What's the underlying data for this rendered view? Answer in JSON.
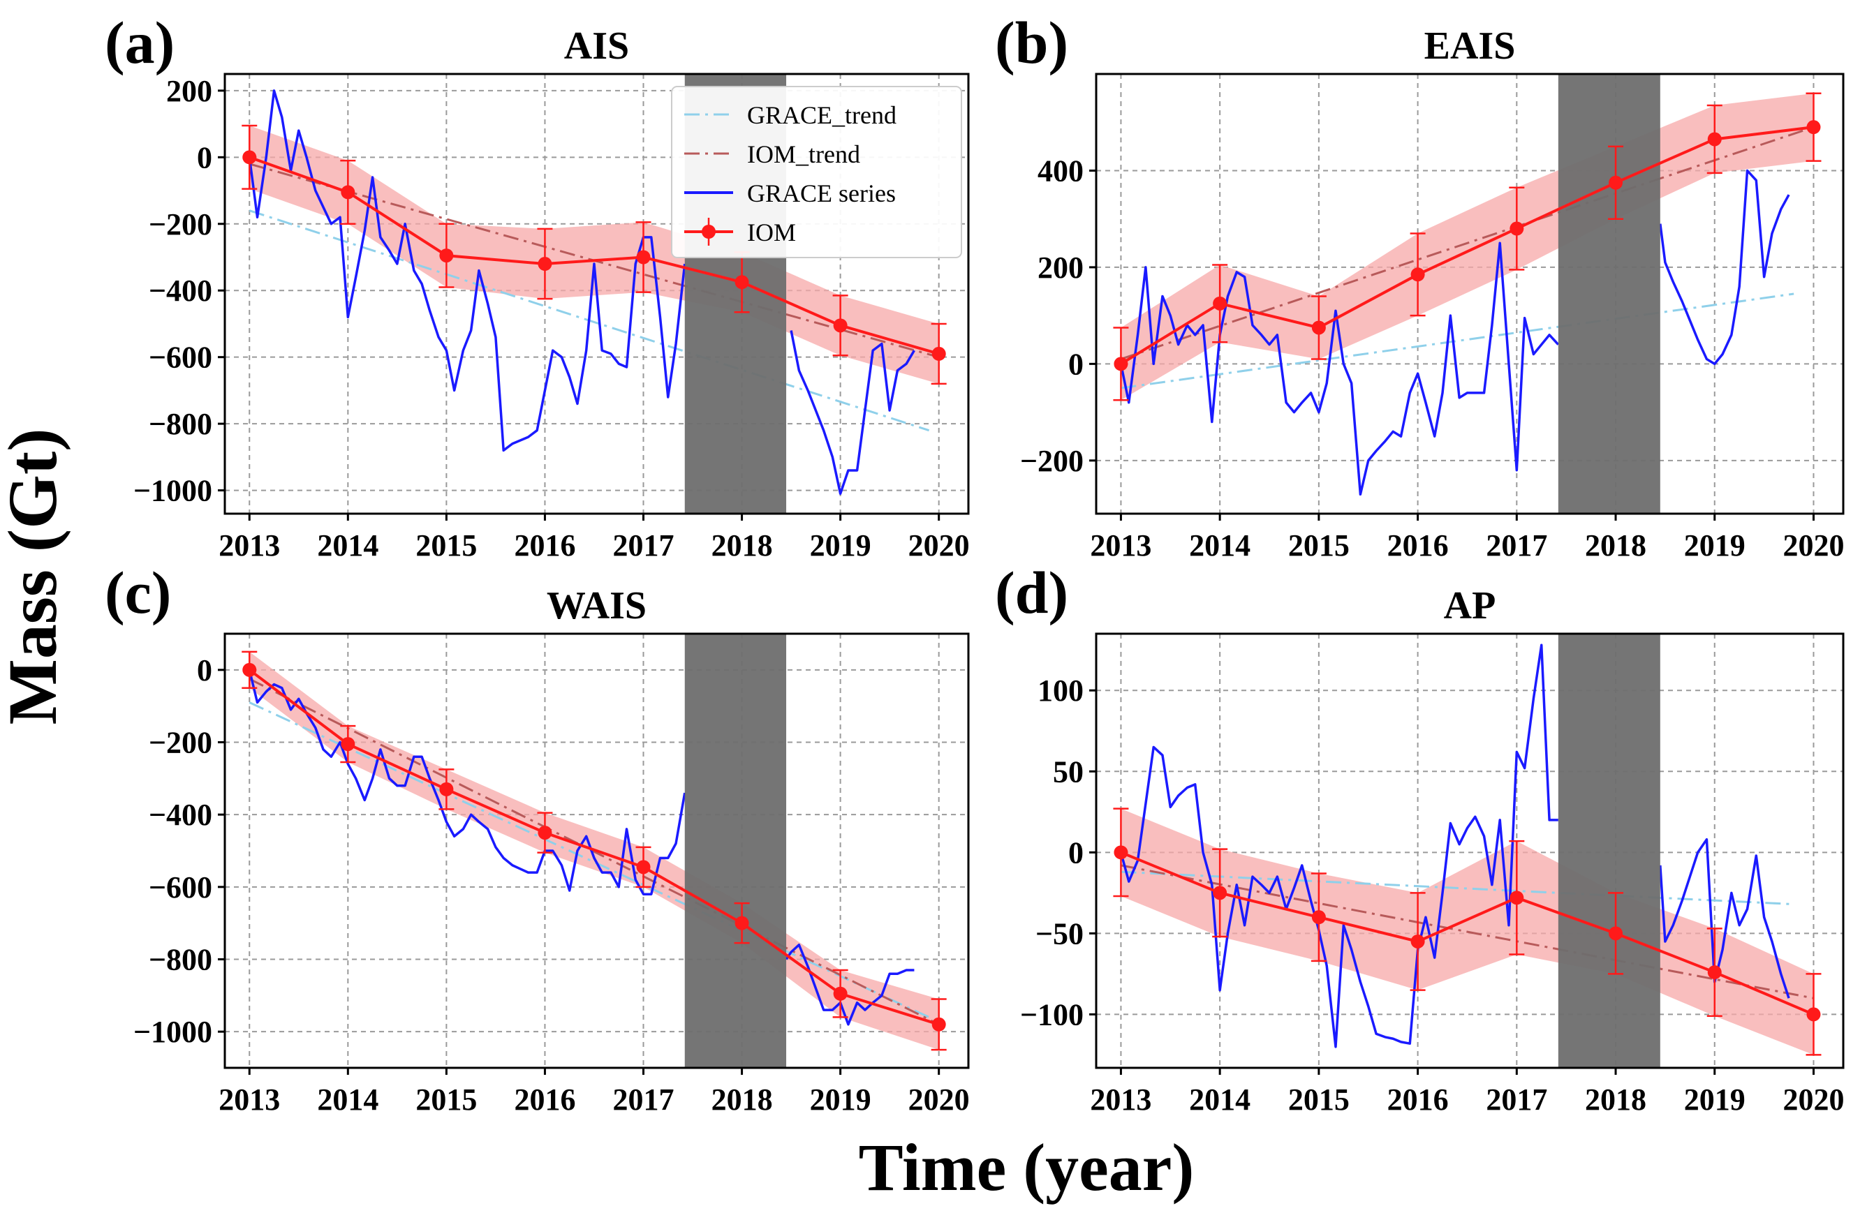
{
  "figure": {
    "ylabel": "Mass (Gt)",
    "xlabel": "Time (year)",
    "gap_shading_color": "#6e6e6e",
    "colors": {
      "grace_trend": "#8fd0ea",
      "iom_trend": "#b85a5a",
      "grace_series": "#1a1aff",
      "iom": "#ff1a1a",
      "iom_band": "#f7a8a8"
    }
  },
  "chart_data": [
    {
      "type": "line",
      "panel": "(a)",
      "title": "AIS",
      "xlabel": "Time (year)",
      "ylabel": "Mass (Gt)",
      "xlim": [
        2012.75,
        2020.3
      ],
      "ylim": [
        -1070,
        250
      ],
      "xticks": [
        2013,
        2014,
        2015,
        2016,
        2017,
        2018,
        2019,
        2020
      ],
      "yticks": [
        200,
        0,
        -200,
        -400,
        -600,
        -800,
        -1000
      ],
      "grid": true,
      "gap_period": [
        2017.42,
        2018.45
      ],
      "legend": {
        "position": "top-right",
        "entries": [
          "GRACE_trend",
          "IOM_trend",
          "GRACE series",
          "IOM"
        ]
      },
      "series": [
        {
          "name": "GRACE_trend",
          "style": "dash-dot",
          "x": [
            2013.0,
            2019.9
          ],
          "y": [
            -160,
            -820
          ]
        },
        {
          "name": "IOM_trend",
          "style": "dash-dot",
          "x": [
            2013.0,
            2020.0
          ],
          "y": [
            -20,
            -600
          ]
        },
        {
          "name": "GRACE series",
          "style": "solid",
          "x": [
            2013.0,
            2013.08,
            2013.17,
            2013.25,
            2013.33,
            2013.42,
            2013.5,
            2013.58,
            2013.67,
            2013.75,
            2013.83,
            2013.92,
            2014.0,
            2014.08,
            2014.17,
            2014.25,
            2014.33,
            2014.42,
            2014.5,
            2014.58,
            2014.67,
            2014.75,
            2014.83,
            2014.92,
            2015.0,
            2015.08,
            2015.17,
            2015.25,
            2015.33,
            2015.42,
            2015.5,
            2015.58,
            2015.67,
            2015.75,
            2015.83,
            2015.92,
            2016.0,
            2016.08,
            2016.17,
            2016.25,
            2016.33,
            2016.42,
            2016.5,
            2016.58,
            2016.67,
            2016.75,
            2016.83,
            2016.92,
            2017.0,
            2017.08,
            2017.17,
            2017.25,
            2017.33,
            2017.42
          ],
          "y": [
            0,
            -180,
            0,
            200,
            120,
            -40,
            80,
            0,
            -100,
            -150,
            -200,
            -180,
            -480,
            -360,
            -220,
            -60,
            -240,
            -280,
            -320,
            -200,
            -340,
            -380,
            -460,
            -540,
            -580,
            -700,
            -580,
            -520,
            -340,
            -440,
            -540,
            -880,
            -860,
            -850,
            -840,
            -820,
            -700,
            -580,
            -600,
            -660,
            -740,
            -580,
            -320,
            -580,
            -590,
            -620,
            -630,
            -320,
            -240,
            -240,
            -480,
            -720,
            -560,
            -320
          ]
        },
        {
          "name": "GRACE series",
          "style": "solid",
          "x": [
            2018.5,
            2018.58,
            2018.67,
            2018.75,
            2018.83,
            2018.92,
            2019.0,
            2019.08,
            2019.17,
            2019.25,
            2019.33,
            2019.42,
            2019.5,
            2019.58,
            2019.67,
            2019.75
          ],
          "y": [
            -520,
            -640,
            -700,
            -760,
            -820,
            -900,
            -1010,
            -940,
            -940,
            -760,
            -580,
            -560,
            -760,
            -640,
            -620,
            -580
          ]
        },
        {
          "name": "IOM",
          "style": "line-markers-errorbars",
          "x": [
            2013,
            2014,
            2015,
            2016,
            2017,
            2018,
            2019,
            2020
          ],
          "y": [
            0,
            -105,
            -295,
            -320,
            -300,
            -375,
            -505,
            -590
          ],
          "errors": [
            95,
            95,
            95,
            105,
            105,
            90,
            90,
            90
          ]
        }
      ]
    },
    {
      "type": "line",
      "panel": "(b)",
      "title": "EAIS",
      "xlabel": "Time (year)",
      "ylabel": "Mass (Gt)",
      "xlim": [
        2012.75,
        2020.3
      ],
      "ylim": [
        -310,
        600
      ],
      "xticks": [
        2013,
        2014,
        2015,
        2016,
        2017,
        2018,
        2019,
        2020
      ],
      "yticks": [
        400,
        200,
        0,
        -200
      ],
      "grid": true,
      "gap_period": [
        2017.42,
        2018.45
      ],
      "series": [
        {
          "name": "GRACE_trend",
          "style": "dash-dot",
          "x": [
            2013.0,
            2019.8
          ],
          "y": [
            -50,
            145
          ]
        },
        {
          "name": "IOM_trend",
          "style": "dash-dot",
          "x": [
            2013.0,
            2020.0
          ],
          "y": [
            10,
            490
          ]
        },
        {
          "name": "GRACE series",
          "style": "solid",
          "x": [
            2013.0,
            2013.08,
            2013.17,
            2013.25,
            2013.33,
            2013.42,
            2013.5,
            2013.58,
            2013.67,
            2013.75,
            2013.83,
            2013.92,
            2014.0,
            2014.08,
            2014.17,
            2014.25,
            2014.33,
            2014.42,
            2014.5,
            2014.58,
            2014.67,
            2014.75,
            2014.83,
            2014.92,
            2015.0,
            2015.08,
            2015.17,
            2015.25,
            2015.33,
            2015.42,
            2015.5,
            2015.58,
            2015.67,
            2015.75,
            2015.83,
            2015.92,
            2016.0,
            2016.08,
            2016.17,
            2016.25,
            2016.33,
            2016.42,
            2016.5,
            2016.58,
            2016.67,
            2016.75,
            2016.83,
            2016.92,
            2017.0,
            2017.08,
            2017.17,
            2017.25,
            2017.33,
            2017.42
          ],
          "y": [
            0,
            -80,
            60,
            200,
            0,
            140,
            100,
            40,
            80,
            60,
            80,
            -120,
            60,
            140,
            190,
            180,
            80,
            60,
            40,
            60,
            -80,
            -100,
            -80,
            -60,
            -100,
            -40,
            110,
            0,
            -40,
            -270,
            -200,
            -180,
            -160,
            -140,
            -150,
            -60,
            -20,
            -80,
            -150,
            -60,
            100,
            -70,
            -60,
            -60,
            -60,
            80,
            250,
            0,
            -220,
            95,
            20,
            40,
            60,
            40
          ]
        },
        {
          "name": "GRACE series",
          "style": "solid",
          "x": [
            2018.45,
            2018.5,
            2018.58,
            2018.67,
            2018.75,
            2018.83,
            2018.92,
            2019.0,
            2019.08,
            2019.17,
            2019.25,
            2019.33,
            2019.42,
            2019.5,
            2019.58,
            2019.67,
            2019.75
          ],
          "y": [
            290,
            210,
            170,
            130,
            90,
            50,
            10,
            0,
            20,
            60,
            160,
            400,
            380,
            180,
            270,
            320,
            350
          ]
        },
        {
          "name": "IOM",
          "style": "line-markers-errorbars",
          "x": [
            2013,
            2014,
            2015,
            2016,
            2017,
            2018,
            2019,
            2020
          ],
          "y": [
            0,
            125,
            75,
            185,
            280,
            375,
            465,
            490
          ],
          "errors": [
            75,
            80,
            65,
            85,
            85,
            75,
            70,
            70
          ]
        }
      ]
    },
    {
      "type": "line",
      "panel": "(c)",
      "title": "WAIS",
      "xlabel": "Time (year)",
      "ylabel": "Mass (Gt)",
      "xlim": [
        2012.75,
        2020.3
      ],
      "ylim": [
        -1100,
        100
      ],
      "xticks": [
        2013,
        2014,
        2015,
        2016,
        2017,
        2018,
        2019,
        2020
      ],
      "yticks": [
        0,
        -200,
        -400,
        -600,
        -800,
        -1000
      ],
      "grid": true,
      "gap_period": [
        2017.42,
        2018.45
      ],
      "series": [
        {
          "name": "GRACE_trend",
          "style": "dash-dot",
          "x": [
            2013.0,
            2019.9
          ],
          "y": [
            -90,
            -960
          ]
        },
        {
          "name": "IOM_trend",
          "style": "dash-dot",
          "x": [
            2013.0,
            2020.0
          ],
          "y": [
            -25,
            -980
          ]
        },
        {
          "name": "GRACE series",
          "style": "solid",
          "x": [
            2013.0,
            2013.08,
            2013.17,
            2013.25,
            2013.33,
            2013.42,
            2013.5,
            2013.58,
            2013.67,
            2013.75,
            2013.83,
            2013.92,
            2014.0,
            2014.08,
            2014.17,
            2014.25,
            2014.33,
            2014.42,
            2014.5,
            2014.58,
            2014.67,
            2014.75,
            2014.83,
            2014.92,
            2015.0,
            2015.08,
            2015.17,
            2015.25,
            2015.33,
            2015.42,
            2015.5,
            2015.58,
            2015.67,
            2015.75,
            2015.83,
            2015.92,
            2016.0,
            2016.08,
            2016.17,
            2016.25,
            2016.33,
            2016.42,
            2016.5,
            2016.58,
            2016.67,
            2016.75,
            2016.83,
            2016.92,
            2017.0,
            2017.08,
            2017.17,
            2017.25,
            2017.33,
            2017.42
          ],
          "y": [
            0,
            -90,
            -60,
            -40,
            -50,
            -110,
            -80,
            -120,
            -160,
            -220,
            -240,
            -200,
            -260,
            -300,
            -360,
            -300,
            -220,
            -300,
            -320,
            -320,
            -240,
            -240,
            -300,
            -360,
            -420,
            -460,
            -440,
            -400,
            -420,
            -440,
            -490,
            -520,
            -540,
            -550,
            -560,
            -560,
            -500,
            -500,
            -540,
            -610,
            -500,
            -460,
            -520,
            -560,
            -560,
            -600,
            -440,
            -580,
            -620,
            -620,
            -520,
            -520,
            -480,
            -340
          ]
        },
        {
          "name": "GRACE series",
          "style": "solid",
          "x": [
            2018.45,
            2018.5,
            2018.58,
            2018.67,
            2018.75,
            2018.83,
            2018.92,
            2019.0,
            2019.08,
            2019.17,
            2019.25,
            2019.33,
            2019.42,
            2019.5,
            2019.58,
            2019.67,
            2019.75
          ],
          "y": [
            -800,
            -780,
            -760,
            -820,
            -880,
            -940,
            -940,
            -920,
            -980,
            -920,
            -940,
            -920,
            -900,
            -840,
            -840,
            -830,
            -830
          ]
        },
        {
          "name": "IOM",
          "style": "line-markers-errorbars",
          "x": [
            2013,
            2014,
            2015,
            2016,
            2017,
            2018,
            2019,
            2020
          ],
          "y": [
            0,
            -205,
            -330,
            -450,
            -545,
            -700,
            -895,
            -980
          ],
          "errors": [
            50,
            50,
            55,
            55,
            55,
            55,
            65,
            70
          ]
        }
      ]
    },
    {
      "type": "line",
      "panel": "(d)",
      "title": "AP",
      "xlabel": "Time (year)",
      "ylabel": "Mass (Gt)",
      "xlim": [
        2012.75,
        2020.3
      ],
      "ylim": [
        -133,
        135
      ],
      "xticks": [
        2013,
        2014,
        2015,
        2016,
        2017,
        2018,
        2019,
        2020
      ],
      "yticks": [
        100,
        50,
        0,
        -50,
        -100
      ],
      "grid": true,
      "gap_period": [
        2017.42,
        2018.45
      ],
      "series": [
        {
          "name": "GRACE_trend",
          "style": "dash-dot",
          "x": [
            2013.0,
            2019.8
          ],
          "y": [
            -12,
            -32
          ]
        },
        {
          "name": "IOM_trend",
          "style": "dash-dot",
          "x": [
            2013.0,
            2020.0
          ],
          "y": [
            -8,
            -90
          ]
        },
        {
          "name": "GRACE series",
          "style": "solid",
          "x": [
            2013.0,
            2013.08,
            2013.17,
            2013.25,
            2013.33,
            2013.42,
            2013.5,
            2013.58,
            2013.67,
            2013.75,
            2013.83,
            2013.92,
            2014.0,
            2014.08,
            2014.17,
            2014.25,
            2014.33,
            2014.42,
            2014.5,
            2014.58,
            2014.67,
            2014.75,
            2014.83,
            2014.92,
            2015.0,
            2015.08,
            2015.17,
            2015.25,
            2015.33,
            2015.42,
            2015.5,
            2015.58,
            2015.67,
            2015.75,
            2015.83,
            2015.92,
            2016.0,
            2016.08,
            2016.17,
            2016.25,
            2016.33,
            2016.42,
            2016.5,
            2016.58,
            2016.67,
            2016.75,
            2016.83,
            2016.92,
            2017.0,
            2017.08,
            2017.17,
            2017.25,
            2017.33,
            2017.42
          ],
          "y": [
            0,
            -18,
            -5,
            30,
            65,
            60,
            28,
            35,
            40,
            42,
            0,
            -20,
            -85,
            -50,
            -20,
            -45,
            -15,
            -20,
            -25,
            -15,
            -35,
            -22,
            -8,
            -30,
            -48,
            -70,
            -120,
            -45,
            -60,
            -80,
            -95,
            -112,
            -114,
            -115,
            -117,
            -118,
            -60,
            -40,
            -65,
            -25,
            18,
            5,
            15,
            22,
            10,
            -20,
            20,
            -45,
            62,
            52,
            95,
            128,
            20,
            20
          ]
        },
        {
          "name": "GRACE series",
          "style": "solid",
          "x": [
            2018.45,
            2018.5,
            2018.58,
            2018.67,
            2018.75,
            2018.83,
            2018.92,
            2019.0,
            2019.08,
            2019.17,
            2019.25,
            2019.33,
            2019.42,
            2019.5,
            2019.58,
            2019.67,
            2019.75
          ],
          "y": [
            -8,
            -55,
            -45,
            -30,
            -15,
            0,
            8,
            -80,
            -60,
            -25,
            -45,
            -35,
            -2,
            -40,
            -55,
            -75,
            -90
          ]
        },
        {
          "name": "IOM",
          "style": "line-markers-errorbars",
          "x": [
            2013,
            2014,
            2015,
            2016,
            2017,
            2018,
            2019,
            2020
          ],
          "y": [
            0,
            -25,
            -40,
            -55,
            -28,
            -50,
            -74,
            -100
          ],
          "errors": [
            27,
            27,
            27,
            30,
            35,
            25,
            27,
            25
          ]
        }
      ]
    }
  ]
}
